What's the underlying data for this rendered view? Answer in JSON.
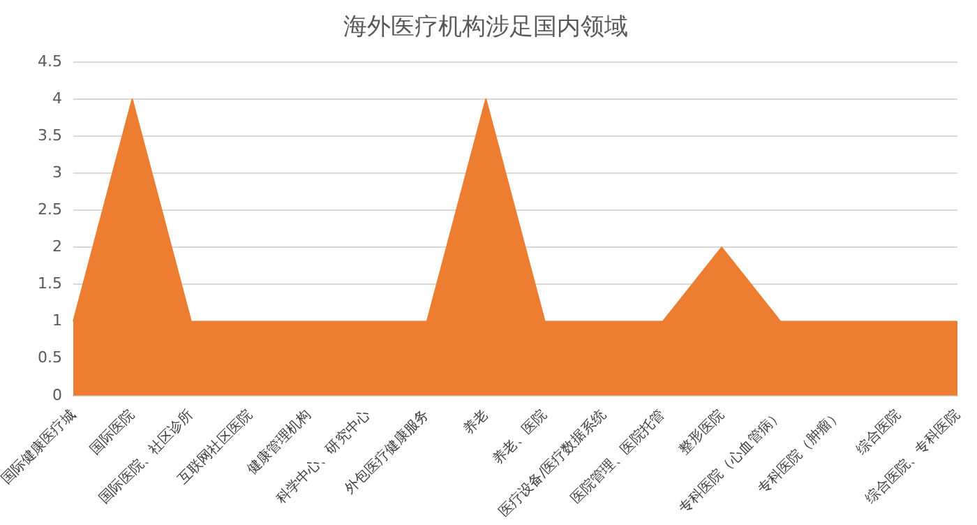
{
  "chart_data": {
    "type": "area",
    "title": "海外医疗机构涉足国内领域",
    "categories": [
      "国际健康医疗城",
      "国际医院",
      "国际医院、社区诊所",
      "互联网社区医院",
      "健康管理机构",
      "科学中心、研究中心",
      "外包医疗健康服务",
      "养老",
      "养老、医院",
      "医疗设备/医疗数据系统",
      "医院管理、医院托管",
      "整形医院",
      "专科医院（心血管病）",
      "专科医院（肿瘤）",
      "综合医院",
      "综合医院、专科医院"
    ],
    "values": [
      1,
      4,
      1,
      1,
      1,
      1,
      1,
      4,
      1,
      1,
      1,
      2,
      1,
      1,
      1,
      1
    ],
    "color": "#ed7d31",
    "ylim": [
      0,
      4.5
    ],
    "yticks": [
      0,
      0.5,
      1,
      1.5,
      2,
      2.5,
      3,
      3.5,
      4,
      4.5
    ],
    "grid": "y",
    "legend": false
  }
}
